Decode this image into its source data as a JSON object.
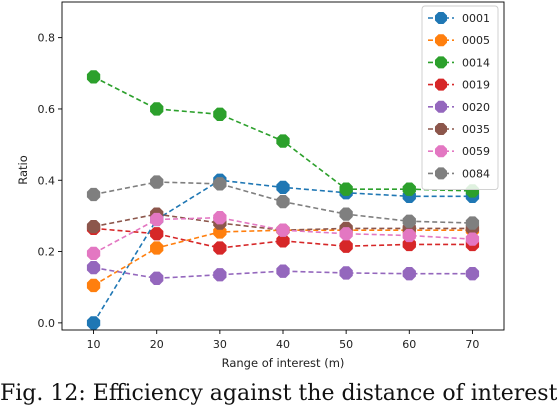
{
  "chart_data": {
    "type": "line",
    "xlabel": "Range of interest (m)",
    "ylabel": "Ratio",
    "x": [
      10,
      20,
      30,
      40,
      50,
      60,
      70
    ],
    "xticks": [
      10,
      20,
      30,
      40,
      50,
      60,
      70
    ],
    "yticks": [
      0.0,
      0.2,
      0.4,
      0.6,
      0.8
    ],
    "ytick_labels": [
      "0.0",
      "0.2",
      "0.4",
      "0.6",
      "0.8"
    ],
    "xlim": [
      5,
      75
    ],
    "ylim": [
      -0.02,
      0.9
    ],
    "legend_position": "top-right",
    "line_style": "dashed",
    "marker": "octagon",
    "series": [
      {
        "name": "0001",
        "color": "#1f77b4",
        "values": [
          0.0,
          0.29,
          0.4,
          0.38,
          0.365,
          0.355,
          0.355
        ]
      },
      {
        "name": "0005",
        "color": "#ff7f0e",
        "values": [
          0.105,
          0.21,
          0.255,
          0.26,
          0.26,
          0.26,
          0.26
        ]
      },
      {
        "name": "0014",
        "color": "#2ca02c",
        "values": [
          0.69,
          0.6,
          0.585,
          0.51,
          0.375,
          0.375,
          0.37
        ]
      },
      {
        "name": "0019",
        "color": "#d62728",
        "values": [
          0.265,
          0.25,
          0.21,
          0.23,
          0.215,
          0.22,
          0.22
        ]
      },
      {
        "name": "0020",
        "color": "#9467bd",
        "values": [
          0.155,
          0.125,
          0.135,
          0.145,
          0.14,
          0.138,
          0.138
        ]
      },
      {
        "name": "0035",
        "color": "#8c564b",
        "values": [
          0.27,
          0.305,
          0.28,
          0.26,
          0.265,
          0.265,
          0.265
        ]
      },
      {
        "name": "0059",
        "color": "#e377c2",
        "values": [
          0.195,
          0.29,
          0.295,
          0.26,
          0.25,
          0.245,
          0.235
        ]
      },
      {
        "name": "0084",
        "color": "#7f7f7f",
        "values": [
          0.36,
          0.395,
          0.39,
          0.34,
          0.305,
          0.285,
          0.28
        ]
      }
    ]
  },
  "caption": "Fig. 12: Efficiency against the distance of interest"
}
